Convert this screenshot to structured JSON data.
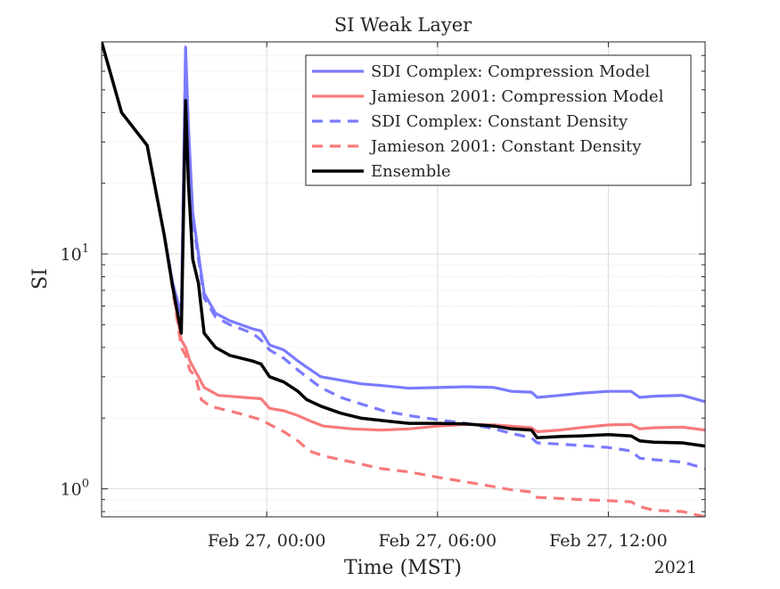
{
  "chart_data": {
    "type": "line",
    "title": "SI Weak Layer",
    "xlabel": "Time (MST)",
    "ylabel": "SI",
    "year_label": "2021",
    "x_axis": {
      "type": "time",
      "range_hours_rel_feb27": [
        -5.8,
        15.4
      ],
      "ticks": [
        {
          "label": "Feb 27, 00:00",
          "hour": 0
        },
        {
          "label": "Feb 27, 06:00",
          "hour": 6
        },
        {
          "label": "Feb 27, 12:00",
          "hour": 12
        }
      ]
    },
    "y_axis": {
      "scale": "log",
      "ylim": [
        0.76,
        80
      ],
      "ticks": [
        {
          "label_base": "10",
          "label_exp": "0",
          "value": 1
        },
        {
          "label_base": "10",
          "label_exp": "1",
          "value": 10
        }
      ]
    },
    "grid": true,
    "legend_position": "top-right",
    "series": [
      {
        "name": "SDI Complex: Compression Model",
        "color": "#7a7aff",
        "style": "solid",
        "points": [
          [
            -5.8,
            80
          ],
          [
            -5.1,
            40
          ],
          [
            -4.2,
            29
          ],
          [
            -3.6,
            12
          ],
          [
            -3.3,
            7.5
          ],
          [
            -3.0,
            5.5
          ],
          [
            -2.85,
            75
          ],
          [
            -2.75,
            35
          ],
          [
            -2.6,
            15
          ],
          [
            -2.4,
            10
          ],
          [
            -2.2,
            6.8
          ],
          [
            -1.8,
            5.6
          ],
          [
            -1.3,
            5.2
          ],
          [
            -0.5,
            4.8
          ],
          [
            -0.2,
            4.7
          ],
          [
            0.1,
            4.1
          ],
          [
            0.6,
            3.9
          ],
          [
            1.1,
            3.5
          ],
          [
            1.4,
            3.3
          ],
          [
            1.9,
            3.0
          ],
          [
            2.6,
            2.9
          ],
          [
            3.3,
            2.8
          ],
          [
            4.1,
            2.75
          ],
          [
            5.0,
            2.68
          ],
          [
            6.0,
            2.7
          ],
          [
            7.0,
            2.72
          ],
          [
            8.0,
            2.7
          ],
          [
            8.6,
            2.6
          ],
          [
            9.3,
            2.58
          ],
          [
            9.5,
            2.45
          ],
          [
            10.3,
            2.5
          ],
          [
            11.0,
            2.55
          ],
          [
            12.0,
            2.6
          ],
          [
            12.8,
            2.6
          ],
          [
            13.1,
            2.45
          ],
          [
            13.6,
            2.48
          ],
          [
            14.6,
            2.5
          ],
          [
            15.4,
            2.35
          ]
        ]
      },
      {
        "name": "Jamieson 2001: Compression Model",
        "color": "#f77a7a",
        "style": "solid",
        "points": [
          [
            -5.8,
            80
          ],
          [
            -5.1,
            40
          ],
          [
            -4.2,
            29
          ],
          [
            -3.6,
            12
          ],
          [
            -3.3,
            7.2
          ],
          [
            -3.0,
            4.3
          ],
          [
            -2.85,
            4.0
          ],
          [
            -2.7,
            3.5
          ],
          [
            -2.4,
            3.0
          ],
          [
            -2.2,
            2.7
          ],
          [
            -1.7,
            2.5
          ],
          [
            -0.8,
            2.45
          ],
          [
            -0.2,
            2.42
          ],
          [
            0.1,
            2.2
          ],
          [
            0.6,
            2.15
          ],
          [
            1.1,
            2.05
          ],
          [
            1.5,
            1.95
          ],
          [
            2.0,
            1.85
          ],
          [
            3.0,
            1.8
          ],
          [
            4.0,
            1.78
          ],
          [
            5.0,
            1.8
          ],
          [
            6.0,
            1.85
          ],
          [
            7.0,
            1.88
          ],
          [
            8.0,
            1.87
          ],
          [
            8.6,
            1.85
          ],
          [
            9.3,
            1.82
          ],
          [
            9.5,
            1.75
          ],
          [
            10.3,
            1.78
          ],
          [
            11.0,
            1.82
          ],
          [
            12.0,
            1.87
          ],
          [
            12.8,
            1.88
          ],
          [
            13.1,
            1.8
          ],
          [
            13.6,
            1.82
          ],
          [
            14.6,
            1.83
          ],
          [
            15.4,
            1.78
          ]
        ]
      },
      {
        "name": "SDI Complex: Constant Density",
        "color": "#7a7aff",
        "style": "dashed",
        "points": [
          [
            -5.8,
            80
          ],
          [
            -5.1,
            40
          ],
          [
            -4.2,
            29
          ],
          [
            -3.6,
            12
          ],
          [
            -3.3,
            7.5
          ],
          [
            -3.0,
            5.5
          ],
          [
            -2.85,
            76
          ],
          [
            -2.75,
            30
          ],
          [
            -2.6,
            14
          ],
          [
            -2.4,
            9.5
          ],
          [
            -2.2,
            6.5
          ],
          [
            -1.8,
            5.4
          ],
          [
            -1.3,
            5.0
          ],
          [
            -0.5,
            4.6
          ],
          [
            -0.2,
            4.3
          ],
          [
            0.1,
            3.9
          ],
          [
            0.6,
            3.6
          ],
          [
            1.1,
            3.2
          ],
          [
            1.4,
            3.0
          ],
          [
            1.9,
            2.7
          ],
          [
            2.6,
            2.45
          ],
          [
            3.3,
            2.3
          ],
          [
            4.1,
            2.15
          ],
          [
            5.0,
            2.05
          ],
          [
            6.0,
            1.97
          ],
          [
            7.0,
            1.9
          ],
          [
            8.0,
            1.8
          ],
          [
            8.6,
            1.72
          ],
          [
            9.3,
            1.65
          ],
          [
            9.5,
            1.57
          ],
          [
            10.3,
            1.55
          ],
          [
            11.0,
            1.53
          ],
          [
            12.0,
            1.5
          ],
          [
            12.8,
            1.45
          ],
          [
            13.1,
            1.35
          ],
          [
            13.6,
            1.33
          ],
          [
            14.6,
            1.3
          ],
          [
            15.4,
            1.22
          ]
        ]
      },
      {
        "name": "Jamieson 2001: Constant Density",
        "color": "#f77a7a",
        "style": "dashed",
        "points": [
          [
            -5.8,
            80
          ],
          [
            -5.1,
            40
          ],
          [
            -4.2,
            29
          ],
          [
            -3.6,
            12
          ],
          [
            -3.3,
            7.0
          ],
          [
            -3.0,
            4.0
          ],
          [
            -2.85,
            3.7
          ],
          [
            -2.7,
            3.2
          ],
          [
            -2.5,
            3.0
          ],
          [
            -2.3,
            2.4
          ],
          [
            -2.0,
            2.25
          ],
          [
            -1.0,
            2.1
          ],
          [
            -0.2,
            1.97
          ],
          [
            0.1,
            1.88
          ],
          [
            0.6,
            1.75
          ],
          [
            1.1,
            1.6
          ],
          [
            1.5,
            1.45
          ],
          [
            2.0,
            1.38
          ],
          [
            3.0,
            1.3
          ],
          [
            4.0,
            1.22
          ],
          [
            5.0,
            1.18
          ],
          [
            6.0,
            1.12
          ],
          [
            7.0,
            1.07
          ],
          [
            8.0,
            1.02
          ],
          [
            8.6,
            0.99
          ],
          [
            9.3,
            0.97
          ],
          [
            9.5,
            0.92
          ],
          [
            10.3,
            0.91
          ],
          [
            11.0,
            0.9
          ],
          [
            12.0,
            0.89
          ],
          [
            12.8,
            0.88
          ],
          [
            13.1,
            0.84
          ],
          [
            13.6,
            0.81
          ],
          [
            14.6,
            0.8
          ],
          [
            15.4,
            0.76
          ]
        ]
      },
      {
        "name": "Ensemble",
        "color": "#000000",
        "style": "solid",
        "points": [
          [
            -5.8,
            80
          ],
          [
            -5.1,
            40
          ],
          [
            -4.2,
            29
          ],
          [
            -3.6,
            12
          ],
          [
            -3.3,
            7.2
          ],
          [
            -3.0,
            4.6
          ],
          [
            -2.85,
            45
          ],
          [
            -2.75,
            20
          ],
          [
            -2.6,
            9.5
          ],
          [
            -2.4,
            7.5
          ],
          [
            -2.2,
            4.6
          ],
          [
            -1.8,
            4.0
          ],
          [
            -1.3,
            3.7
          ],
          [
            -0.5,
            3.5
          ],
          [
            -0.2,
            3.4
          ],
          [
            0.1,
            3.0
          ],
          [
            0.6,
            2.85
          ],
          [
            1.1,
            2.6
          ],
          [
            1.4,
            2.4
          ],
          [
            1.9,
            2.25
          ],
          [
            2.6,
            2.1
          ],
          [
            3.3,
            2.0
          ],
          [
            4.1,
            1.95
          ],
          [
            5.0,
            1.9
          ],
          [
            6.0,
            1.9
          ],
          [
            7.0,
            1.89
          ],
          [
            8.0,
            1.85
          ],
          [
            8.6,
            1.8
          ],
          [
            9.3,
            1.78
          ],
          [
            9.5,
            1.65
          ],
          [
            10.3,
            1.67
          ],
          [
            11.0,
            1.68
          ],
          [
            12.0,
            1.7
          ],
          [
            12.8,
            1.68
          ],
          [
            13.1,
            1.6
          ],
          [
            13.6,
            1.58
          ],
          [
            14.6,
            1.57
          ],
          [
            15.4,
            1.52
          ]
        ]
      }
    ]
  }
}
